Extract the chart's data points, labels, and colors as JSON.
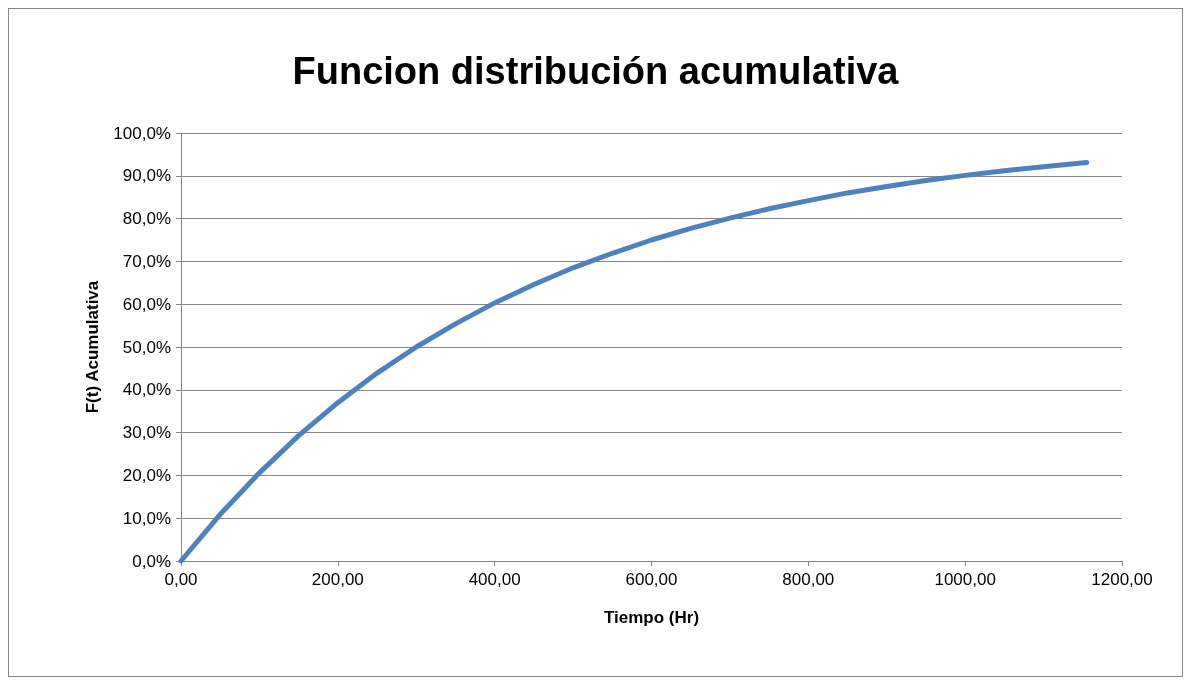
{
  "chart_data": {
    "type": "line",
    "title": "Funcion distribución acumulativa",
    "xlabel": "Tiempo (Hr)",
    "ylabel": "F(t) Acumulativa",
    "x": [
      0,
      50,
      100,
      150,
      200,
      250,
      300,
      350,
      400,
      450,
      500,
      550,
      600,
      650,
      700,
      750,
      800,
      850,
      900,
      950,
      1000,
      1050,
      1100,
      1155
    ],
    "series": [
      {
        "color": "#4f81bd",
        "values": [
          0,
          10.9,
          20.6,
          29.3,
          37.0,
          43.9,
          50.0,
          55.4,
          60.3,
          64.6,
          68.5,
          71.9,
          75.0,
          77.7,
          80.1,
          82.3,
          84.2,
          86.0,
          87.5,
          88.9,
          90.1,
          91.2,
          92.1,
          93.1
        ]
      }
    ],
    "xlim": [
      0,
      1200
    ],
    "xticks": [
      {
        "value": 0,
        "label": "0,00"
      },
      {
        "value": 200,
        "label": "200,00"
      },
      {
        "value": 400,
        "label": "400,00"
      },
      {
        "value": 600,
        "label": "600,00"
      },
      {
        "value": 800,
        "label": "800,00"
      },
      {
        "value": 1000,
        "label": "1000,00"
      },
      {
        "value": 1200,
        "label": "1200,00"
      }
    ],
    "ylim": [
      0,
      100
    ],
    "yticks": [
      {
        "value": 0,
        "label": "0,0%"
      },
      {
        "value": 10,
        "label": "10,0%"
      },
      {
        "value": 20,
        "label": "20,0%"
      },
      {
        "value": 30,
        "label": "30,0%"
      },
      {
        "value": 40,
        "label": "40,0%"
      },
      {
        "value": 50,
        "label": "50,0%"
      },
      {
        "value": 60,
        "label": "60,0%"
      },
      {
        "value": 70,
        "label": "70,0%"
      },
      {
        "value": 80,
        "label": "80,0%"
      },
      {
        "value": 90,
        "label": "90,0%"
      },
      {
        "value": 100,
        "label": "100,0%"
      }
    ],
    "grid": "y",
    "marker": "none",
    "line_style": "solid"
  }
}
